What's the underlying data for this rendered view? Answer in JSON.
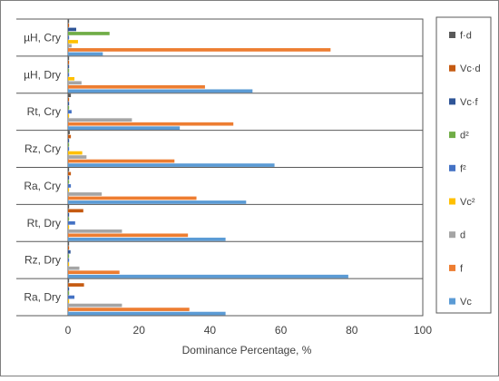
{
  "chart_data": {
    "type": "bar",
    "orientation": "horizontal",
    "categories": [
      "µH, Cry",
      "µH, Dry",
      "Rt, Cry",
      "Rz, Cry",
      "Ra, Cry",
      "Rt, Dry",
      "Rz, Dry",
      "Ra, Dry"
    ],
    "series": [
      {
        "name": "f·d",
        "color": "#595959",
        "values": [
          0.3,
          0.3,
          0.8,
          0.5,
          0.3,
          0.3,
          0.3,
          0.3
        ]
      },
      {
        "name": "Vc·d",
        "color": "#c55a11",
        "values": [
          0.3,
          0.3,
          0.3,
          0.8,
          0.8,
          4.3,
          0.3,
          4.5
        ]
      },
      {
        "name": "Vc·f",
        "color": "#2f5597",
        "values": [
          2.3,
          0.3,
          0.3,
          0.3,
          0.3,
          0.3,
          0.7,
          0.3
        ]
      },
      {
        "name": "d²",
        "color": "#70ad47",
        "values": [
          11.7,
          0.3,
          0.3,
          0.3,
          0.3,
          0.3,
          0.3,
          0.3
        ]
      },
      {
        "name": "f²",
        "color": "#4472c4",
        "values": [
          0.3,
          0.3,
          1.0,
          0.3,
          0.8,
          2.0,
          0.3,
          1.8
        ]
      },
      {
        "name": "Vc²",
        "color": "#ffc000",
        "values": [
          2.8,
          1.8,
          0.3,
          4.0,
          0.3,
          0.3,
          0.3,
          0.3
        ]
      },
      {
        "name": "d",
        "color": "#a5a5a5",
        "values": [
          1.0,
          3.8,
          18.0,
          5.2,
          9.5,
          15.2,
          3.2,
          15.2
        ]
      },
      {
        "name": "f",
        "color": "#ed7d31",
        "values": [
          74.0,
          38.6,
          46.6,
          30.0,
          36.2,
          33.8,
          14.5,
          34.2
        ]
      },
      {
        "name": "Vc",
        "color": "#5b9bd5",
        "values": [
          9.8,
          52.0,
          31.5,
          58.2,
          50.2,
          44.4,
          79.0,
          44.4
        ]
      }
    ],
    "xlabel": "Dominance Percentage, %",
    "xlim": [
      0,
      100
    ],
    "xticks": [
      "0",
      "20",
      "40",
      "60",
      "80",
      "100"
    ],
    "grid": false,
    "legend_position": "right"
  }
}
